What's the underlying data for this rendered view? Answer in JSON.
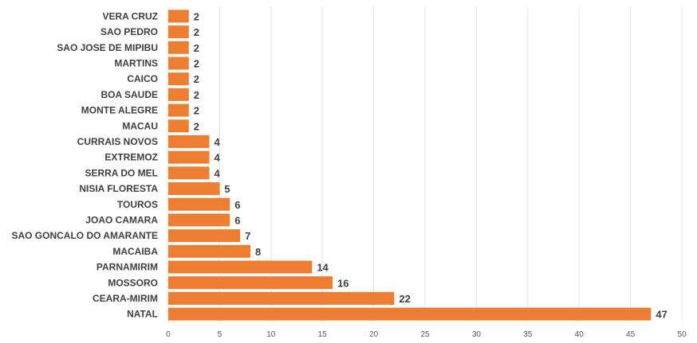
{
  "chart_data": {
    "type": "bar",
    "orientation": "horizontal",
    "title": "",
    "xlabel": "",
    "ylabel": "",
    "categories": [
      "VERA CRUZ",
      "SAO PEDRO",
      "SAO JOSE DE MIPIBU",
      "MARTINS",
      "CAICO",
      "BOA SAUDE",
      "MONTE ALEGRE",
      "MACAU",
      "CURRAIS NOVOS",
      "EXTREMOZ",
      "SERRA DO MEL",
      "NISIA FLORESTA",
      "TOUROS",
      "JOAO CAMARA",
      "SAO GONCALO DO AMARANTE",
      "MACAIBA",
      "PARNAMIRIM",
      "MOSSORO",
      "CEARA-MIRIM",
      "NATAL"
    ],
    "values": [
      2,
      2,
      2,
      2,
      2,
      2,
      2,
      2,
      4,
      4,
      4,
      5,
      6,
      6,
      7,
      8,
      14,
      16,
      22,
      47
    ],
    "xlim": [
      0,
      50
    ],
    "xticks": [
      "0",
      "5",
      "10",
      "15",
      "20",
      "25",
      "30",
      "35",
      "40",
      "45",
      "50"
    ],
    "grid": true,
    "legend": "none",
    "bar_color": "#ED7D31"
  }
}
